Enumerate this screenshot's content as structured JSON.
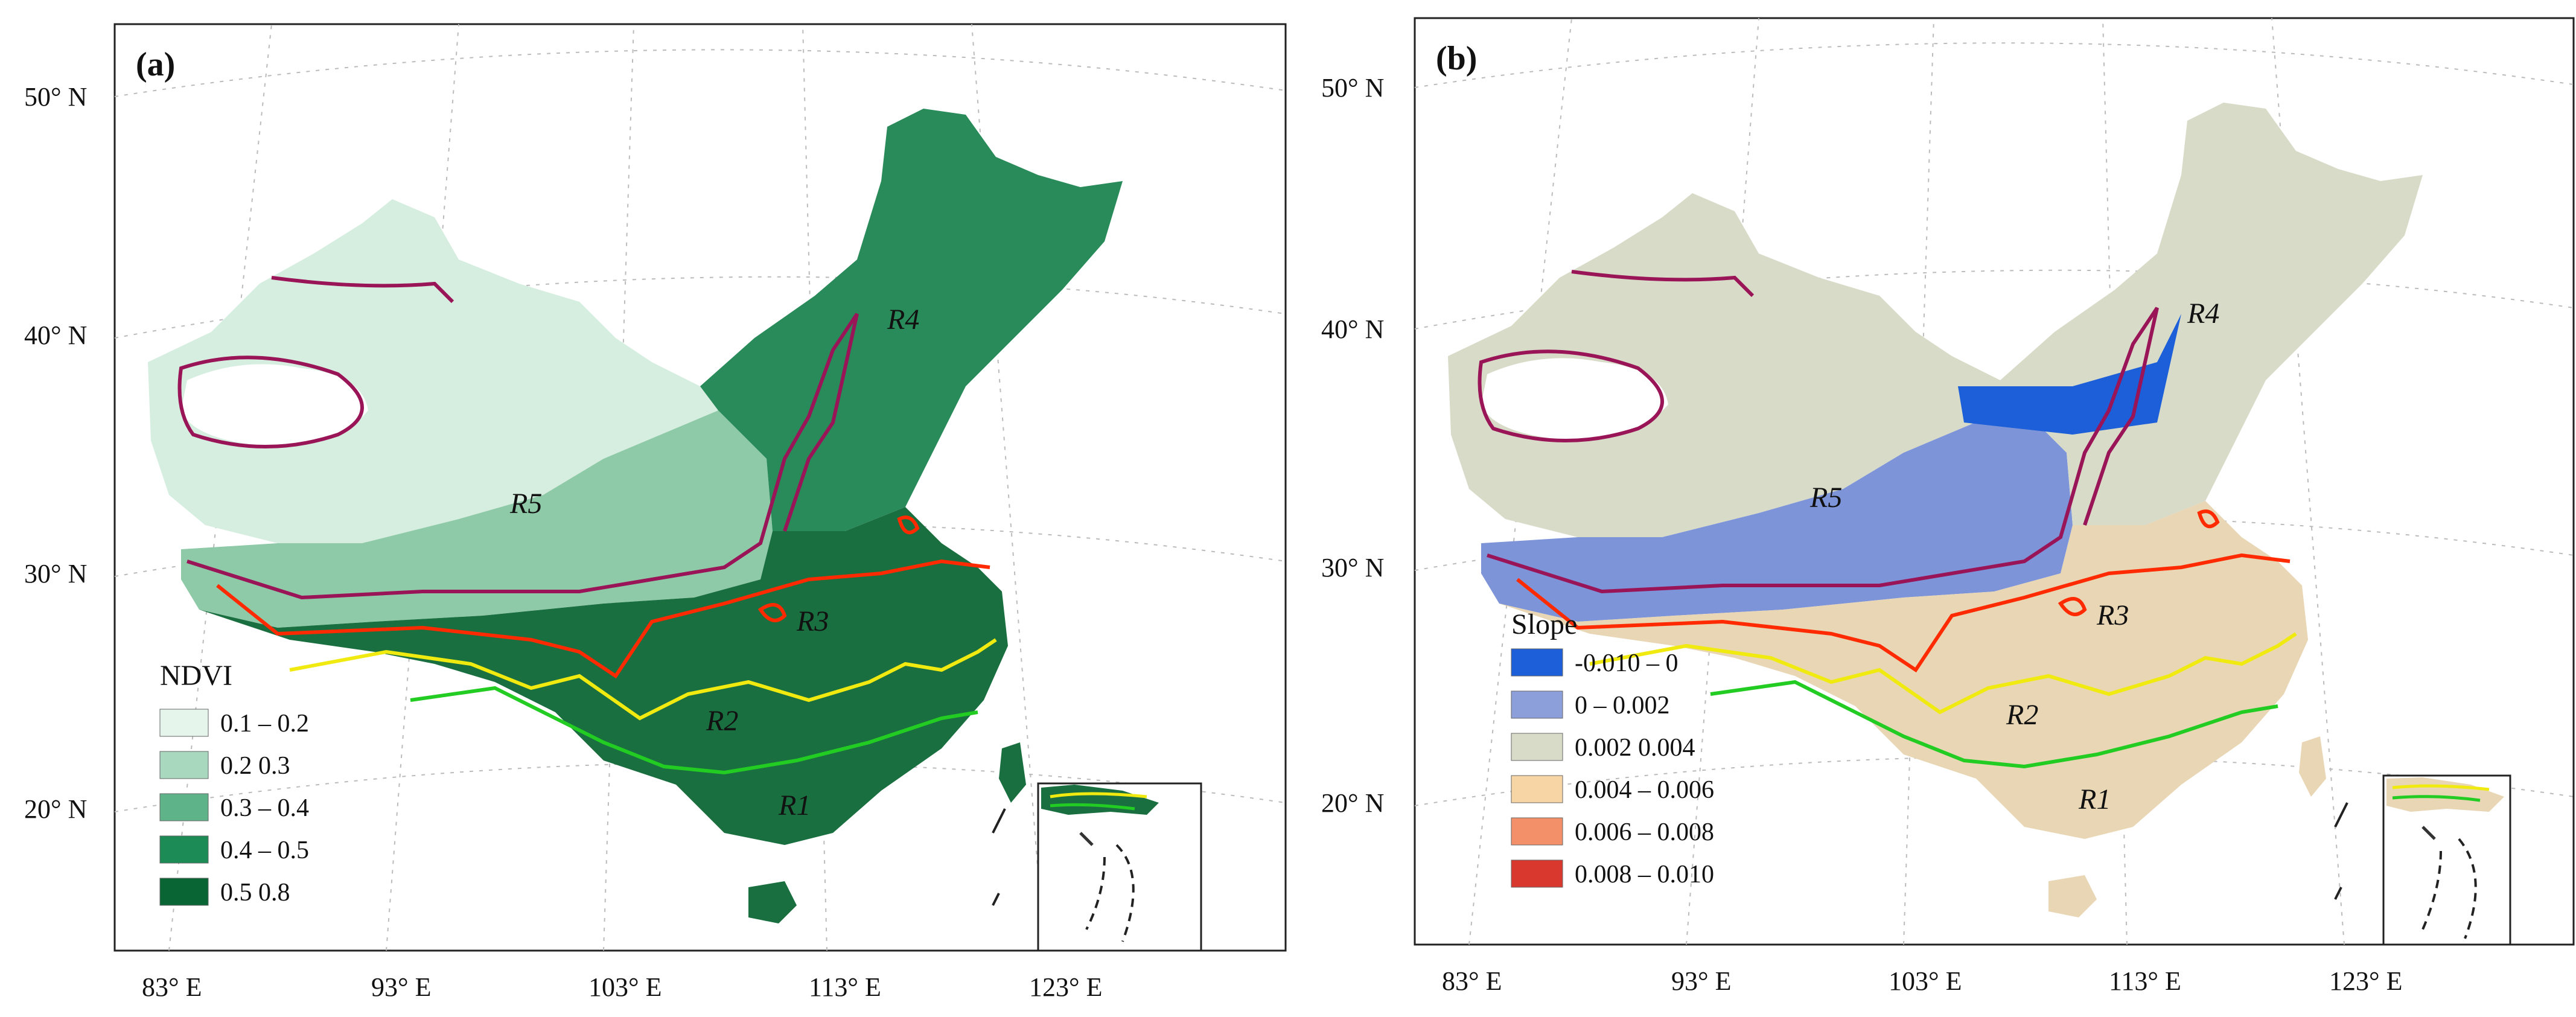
{
  "panels": [
    {
      "label": "(a)",
      "legend": {
        "title": "NDVI",
        "items": [
          {
            "label": "0.1 – 0.2",
            "color": "#e6f5ec"
          },
          {
            "label": "0.2   0.3",
            "color": "#a8d8bd"
          },
          {
            "label": "0.3 – 0.4",
            "color": "#5fb389"
          },
          {
            "label": "0.4 – 0.5",
            "color": "#1d8b55"
          },
          {
            "label": "0.5   0.8",
            "color": "#0a6534"
          }
        ]
      },
      "fill_colors": {
        "west": "#d5eedf",
        "plateau": "#8fcaa8",
        "northeast": "#2a8b5a",
        "south": "#196f3f",
        "lake": "#ffffff"
      }
    },
    {
      "label": "(b)",
      "legend": {
        "title": "Slope",
        "items": [
          {
            "label": "-0.010 – 0",
            "color": "#1c5fd8"
          },
          {
            "label": "0 – 0.002",
            "color": "#8c9fdb"
          },
          {
            "label": "0.002   0.004",
            "color": "#d8dbc8"
          },
          {
            "label": "0.004 – 0.006",
            "color": "#f8d5a4"
          },
          {
            "label": "0.006 – 0.008",
            "color": "#f3906a"
          },
          {
            "label": "0.008 – 0.010",
            "color": "#d9382e"
          }
        ]
      },
      "fill_colors": {
        "west": "#d8dbc8",
        "plateau": "#7d94d8",
        "northeast": "#d8dbc8",
        "south": "#e8d6b4",
        "lake": "#ffffff"
      }
    }
  ],
  "lat_labels": [
    "50° N",
    "40° N",
    "30° N",
    "20° N"
  ],
  "lon_labels": [
    "83° E",
    "93° E",
    "103° E",
    "113° E",
    "123° E"
  ],
  "regions": [
    "R1",
    "R2",
    "R3",
    "R4",
    "R5"
  ],
  "boundary_colors": {
    "R1": "#22cc22",
    "R2": "#f0ea10",
    "R3": "#ff2a00",
    "R4": "#9a1458",
    "R5": "#9a1458"
  }
}
